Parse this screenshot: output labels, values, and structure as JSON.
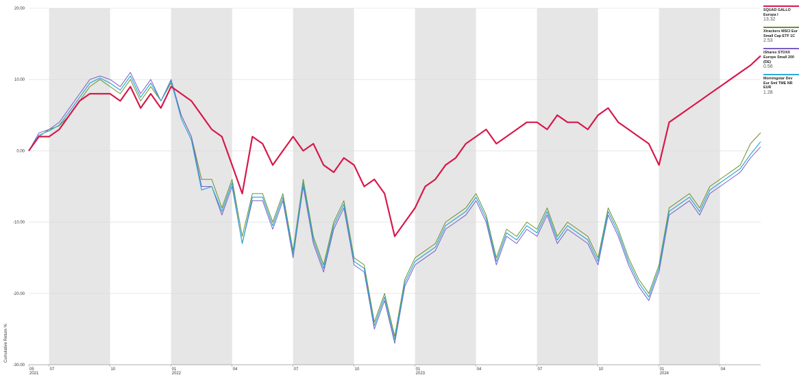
{
  "chart_data": {
    "type": "line",
    "ylabel": "Cumulative Return %",
    "ylim": [
      -30,
      20
    ],
    "yticks": [
      {
        "value": 20,
        "label": "20.00"
      },
      {
        "value": 10,
        "label": "10.00"
      },
      {
        "value": 0,
        "label": "0.00"
      },
      {
        "value": -10,
        "label": "-10.00"
      },
      {
        "value": -20,
        "label": "-20.00"
      },
      {
        "value": -30,
        "label": "-30.00"
      }
    ],
    "xlim": [
      0,
      36
    ],
    "xticks": [
      {
        "value": 0,
        "label": "05",
        "year": "2021"
      },
      {
        "value": 1,
        "label": "07",
        "year": ""
      },
      {
        "value": 4,
        "label": "10",
        "year": ""
      },
      {
        "value": 7,
        "label": "01",
        "year": "2022"
      },
      {
        "value": 10,
        "label": "04",
        "year": ""
      },
      {
        "value": 13,
        "label": "07",
        "year": ""
      },
      {
        "value": 16,
        "label": "10",
        "year": ""
      },
      {
        "value": 19,
        "label": "01",
        "year": "2023"
      },
      {
        "value": 22,
        "label": "04",
        "year": ""
      },
      {
        "value": 25,
        "label": "07",
        "year": ""
      },
      {
        "value": 28,
        "label": "10",
        "year": ""
      },
      {
        "value": 31,
        "label": "01",
        "year": "2024"
      },
      {
        "value": 34,
        "label": "04",
        "year": ""
      }
    ],
    "shaded_bands": [
      [
        1,
        4
      ],
      [
        7,
        10
      ],
      [
        13,
        16
      ],
      [
        19,
        22
      ],
      [
        25,
        28
      ],
      [
        31,
        34
      ]
    ],
    "x": [
      0,
      0.5,
      1,
      1.5,
      2,
      2.5,
      3,
      3.5,
      4,
      4.5,
      5,
      5.5,
      6,
      6.5,
      7,
      7.5,
      8,
      8.5,
      9,
      9.5,
      10,
      10.5,
      11,
      11.5,
      12,
      12.5,
      13,
      13.5,
      14,
      14.5,
      15,
      15.5,
      16,
      16.5,
      17,
      17.5,
      18,
      18.5,
      19,
      19.5,
      20,
      20.5,
      21,
      21.5,
      22,
      22.5,
      23,
      23.5,
      24,
      24.5,
      25,
      25.5,
      26,
      26.5,
      27,
      27.5,
      28,
      28.5,
      29,
      29.5,
      30,
      30.5,
      31,
      31.5,
      32,
      32.5,
      33,
      33.5,
      34,
      34.5,
      35,
      35.5,
      36
    ],
    "series": [
      {
        "name": "SQUAD GALLO Europa I",
        "value_label": "13.32",
        "color": "#d6184a",
        "width": 2.2,
        "values": [
          0,
          2,
          2,
          3,
          5,
          7,
          8,
          8,
          8,
          7,
          9,
          6,
          8,
          6,
          9,
          8,
          7,
          5,
          3,
          2,
          -2,
          -6,
          2,
          1,
          -2,
          0,
          2,
          0,
          1,
          -2,
          -3,
          -1,
          -2,
          -5,
          -4,
          -6,
          -12,
          -10,
          -8,
          -5,
          -4,
          -2,
          -1,
          1,
          2,
          3,
          1,
          2,
          3,
          4,
          4,
          3,
          5,
          4,
          4,
          3,
          5,
          6,
          4,
          3,
          2,
          1,
          -2,
          4,
          5,
          6,
          7,
          8,
          9,
          10,
          11,
          12,
          13.32
        ]
      },
      {
        "name": "Xtrackers MSCI Eur Small Cap ETF 1C",
        "value_label": "2.53",
        "color": "#6b8f2a",
        "width": 1,
        "values": [
          0,
          2,
          3,
          3.5,
          5,
          7,
          9,
          10,
          9,
          8,
          10,
          7,
          9,
          7,
          9.5,
          5,
          2,
          -4,
          -4,
          -8,
          -4,
          -12,
          -6,
          -6,
          -10,
          -6,
          -14,
          -4,
          -12,
          -16,
          -10,
          -7,
          -15,
          -16,
          -24,
          -20,
          -26,
          -18,
          -15,
          -14,
          -13,
          -10,
          -9,
          -8,
          -6,
          -9,
          -15,
          -11,
          -12,
          -10,
          -11,
          -8,
          -12,
          -10,
          -11,
          -12,
          -15,
          -8,
          -11,
          -15,
          -18,
          -20,
          -16,
          -8,
          -7,
          -6,
          -8,
          -5,
          -4,
          -3,
          -2,
          1,
          2.53
        ]
      },
      {
        "name": "iShares STOXX Europe Small 200 (DE)",
        "value_label": "0.56",
        "color": "#7a5cc4",
        "width": 1,
        "values": [
          0,
          2.5,
          3,
          4,
          6,
          8,
          10,
          10.5,
          10,
          9,
          11,
          8,
          10,
          7,
          10,
          5,
          2,
          -5,
          -5,
          -9,
          -5,
          -13,
          -7,
          -7,
          -11,
          -7,
          -15,
          -5,
          -13,
          -17,
          -11,
          -8,
          -16,
          -17,
          -25,
          -21,
          -27,
          -19,
          -16,
          -15,
          -14,
          -11,
          -10,
          -9,
          -7,
          -10,
          -16,
          -12,
          -13,
          -11,
          -12,
          -9,
          -13,
          -11,
          -12,
          -13,
          -16,
          -9,
          -12,
          -16,
          -19,
          -21,
          -17,
          -9,
          -8,
          -7,
          -9,
          -6,
          -5,
          -4,
          -3,
          -1,
          0.56
        ]
      },
      {
        "name": "Morningstar Dev Eur Sml TME NR EUR",
        "value_label": "1.28",
        "color": "#2ea9d6",
        "width": 1.2,
        "values": [
          0,
          2.2,
          2.8,
          3.6,
          5.5,
          7.5,
          9.5,
          10.2,
          9.5,
          8.5,
          10.5,
          7.5,
          9.5,
          7,
          9.8,
          4.5,
          1.5,
          -5.5,
          -5,
          -8.5,
          -4.5,
          -13,
          -6.5,
          -6.5,
          -10.5,
          -6.5,
          -14.5,
          -4.5,
          -12.5,
          -16.5,
          -10.5,
          -7.5,
          -15.5,
          -16.5,
          -24.5,
          -20.5,
          -26.5,
          -18.5,
          -15.5,
          -14.5,
          -13.5,
          -10.5,
          -9.5,
          -8.5,
          -6.5,
          -9.5,
          -15.5,
          -11.5,
          -12.5,
          -10.5,
          -11.5,
          -8.5,
          -12.5,
          -10.5,
          -11.5,
          -12.5,
          -15.5,
          -8.5,
          -11.5,
          -15.5,
          -18.5,
          -20.5,
          -16.5,
          -8.5,
          -7.5,
          -6.5,
          -8.5,
          -5.5,
          -4.5,
          -3.5,
          -2.5,
          -0.5,
          1.28
        ]
      }
    ]
  }
}
